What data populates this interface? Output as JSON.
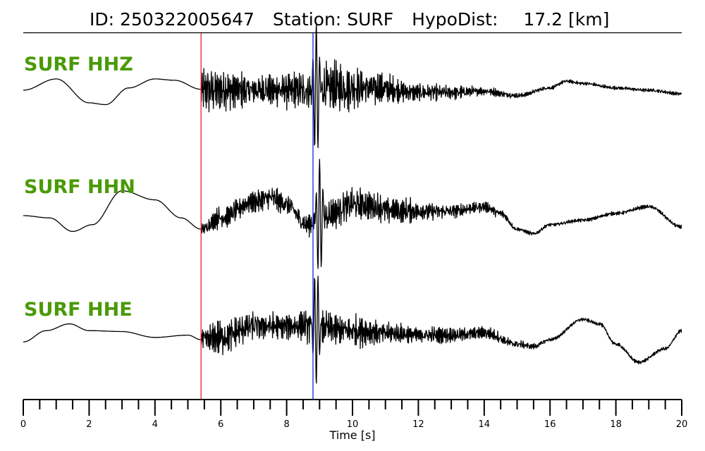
{
  "header": {
    "id_label": "ID:",
    "id_value": "250322005647",
    "station_label": "Station:",
    "station_value": "SURF",
    "dist_label": "HypoDist:",
    "dist_value": "17.2",
    "dist_unit": "[km]"
  },
  "colors": {
    "label_green": "#4a9a07",
    "trace": "#000000",
    "p_pick": "#e8211c",
    "s_pick": "#1f1fdf"
  },
  "chart_data": {
    "type": "line",
    "xlabel": "Time [s]",
    "xlim": [
      0,
      20
    ],
    "x_ticks": [
      0,
      2,
      4,
      6,
      8,
      10,
      12,
      14,
      16,
      18,
      20
    ],
    "x_tick_labels": [
      "0",
      "2",
      "4",
      "6",
      "8",
      "10",
      "12",
      "14",
      "16",
      "18",
      "20"
    ],
    "minor_tick_step": 0.5,
    "grid": false,
    "picks": [
      {
        "phase": "P",
        "time": 5.4,
        "color": "#e8211c"
      },
      {
        "phase": "S",
        "time": 8.8,
        "color": "#1f1fdf"
      }
    ],
    "series": [
      {
        "name": "SURF HHZ",
        "envelope_times": [
          0,
          1.0,
          2.0,
          2.5,
          3.2,
          4.0,
          4.6,
          5.4
        ],
        "envelope_values": [
          0.0,
          0.25,
          -0.28,
          -0.32,
          0.05,
          0.25,
          0.22,
          0.02
        ],
        "coda_times": [
          5.4,
          6.0,
          7.0,
          8.0,
          8.8,
          9.4,
          10.5,
          12.0,
          13.0,
          14.0,
          15.0,
          16.0,
          16.5,
          17.0,
          18.0,
          19.0,
          20.0
        ],
        "coda_amplitudes": [
          0.7,
          0.65,
          0.45,
          0.5,
          0.6,
          0.75,
          0.5,
          0.25,
          0.2,
          0.12,
          0.08,
          0.05,
          0.05,
          0.05,
          0.05,
          0.05,
          0.05
        ],
        "coda_baseline": [
          0.0,
          0.0,
          0.0,
          0.0,
          0.0,
          0.05,
          0.05,
          -0.05,
          -0.05,
          -0.02,
          -0.12,
          0.05,
          0.2,
          0.15,
          0.05,
          0.0,
          -0.08
        ],
        "peak": {
          "time": 8.9,
          "value": 1.5
        }
      },
      {
        "name": "SURF HHN",
        "envelope_times": [
          0,
          0.8,
          1.5,
          2.1,
          3.0,
          4.0,
          4.8,
          5.4
        ],
        "envelope_values": [
          0.0,
          -0.05,
          -0.35,
          -0.2,
          0.55,
          0.35,
          -0.05,
          -0.3
        ],
        "coda_times": [
          5.4,
          6.0,
          7.0,
          7.5,
          8.0,
          8.6,
          9.2,
          10.0,
          11.5,
          13.0,
          14.0,
          14.5,
          15.0,
          15.5,
          16.0,
          17.0,
          18.0,
          19.0,
          20.0
        ],
        "coda_amplitudes": [
          0.15,
          0.3,
          0.3,
          0.35,
          0.3,
          0.3,
          0.45,
          0.45,
          0.35,
          0.2,
          0.15,
          0.12,
          0.05,
          0.05,
          0.05,
          0.05,
          0.05,
          0.05,
          0.05
        ],
        "coda_baseline": [
          -0.3,
          -0.05,
          0.3,
          0.4,
          0.25,
          -0.2,
          0.0,
          0.25,
          0.1,
          0.1,
          0.2,
          0.05,
          -0.3,
          -0.4,
          -0.2,
          -0.1,
          0.05,
          0.2,
          -0.25
        ],
        "peak": {
          "time": 9.0,
          "value": 1.3
        }
      },
      {
        "name": "SURF HHE",
        "envelope_times": [
          0,
          0.7,
          1.4,
          2.0,
          3.0,
          4.0,
          5.0,
          5.4
        ],
        "envelope_values": [
          -0.05,
          0.2,
          0.35,
          0.2,
          0.18,
          0.05,
          0.1,
          0.0
        ],
        "coda_times": [
          5.4,
          6.0,
          7.0,
          8.0,
          8.8,
          10.0,
          11.0,
          12.0,
          13.0,
          14.0,
          15.0,
          15.5,
          16.0,
          17.0,
          17.5,
          18.0,
          18.7,
          19.5,
          20.0
        ],
        "coda_amplitudes": [
          0.35,
          0.5,
          0.4,
          0.35,
          0.45,
          0.45,
          0.3,
          0.25,
          0.2,
          0.18,
          0.12,
          0.08,
          0.05,
          0.05,
          0.05,
          0.05,
          0.05,
          0.05,
          0.05
        ],
        "coda_baseline": [
          0.0,
          0.05,
          0.3,
          0.3,
          0.3,
          0.2,
          0.15,
          0.1,
          0.1,
          0.15,
          -0.1,
          -0.15,
          0.0,
          0.45,
          0.35,
          -0.1,
          -0.5,
          -0.2,
          0.2
        ],
        "peak": {
          "time": 8.9,
          "value": -1.3
        }
      }
    ]
  }
}
